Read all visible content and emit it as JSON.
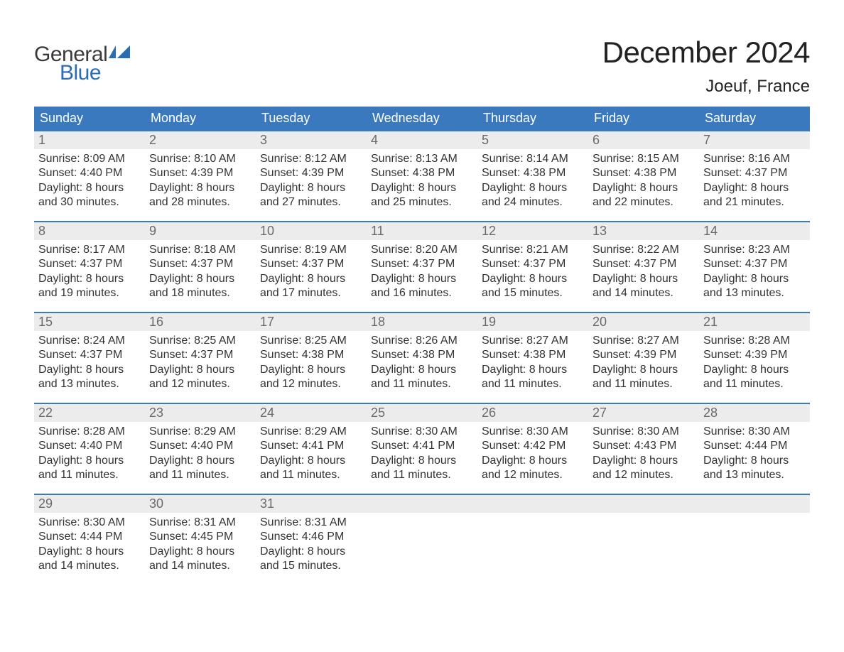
{
  "brand": {
    "part1": "General",
    "part2": "Blue"
  },
  "title": "December 2024",
  "location": "Joeuf, France",
  "colors": {
    "header_bg": "#3a79bd",
    "header_text": "#ffffff",
    "daynum_bg": "#ececec",
    "daynum_border": "#3a79bd",
    "daynum_text": "#6a6a6a",
    "body_text": "#333333",
    "brand_dark": "#3a3a3a",
    "brand_blue": "#2a6db5",
    "page_bg": "#ffffff"
  },
  "typography": {
    "title_fontsize": 42,
    "location_fontsize": 24,
    "header_fontsize": 18,
    "daynum_fontsize": 18,
    "body_fontsize": 16,
    "logo_fontsize": 30
  },
  "weekdays": [
    "Sunday",
    "Monday",
    "Tuesday",
    "Wednesday",
    "Thursday",
    "Friday",
    "Saturday"
  ],
  "days": [
    {
      "n": 1,
      "sunrise": "8:09 AM",
      "sunset": "4:40 PM",
      "daylight": "8 hours and 30 minutes."
    },
    {
      "n": 2,
      "sunrise": "8:10 AM",
      "sunset": "4:39 PM",
      "daylight": "8 hours and 28 minutes."
    },
    {
      "n": 3,
      "sunrise": "8:12 AM",
      "sunset": "4:39 PM",
      "daylight": "8 hours and 27 minutes."
    },
    {
      "n": 4,
      "sunrise": "8:13 AM",
      "sunset": "4:38 PM",
      "daylight": "8 hours and 25 minutes."
    },
    {
      "n": 5,
      "sunrise": "8:14 AM",
      "sunset": "4:38 PM",
      "daylight": "8 hours and 24 minutes."
    },
    {
      "n": 6,
      "sunrise": "8:15 AM",
      "sunset": "4:38 PM",
      "daylight": "8 hours and 22 minutes."
    },
    {
      "n": 7,
      "sunrise": "8:16 AM",
      "sunset": "4:37 PM",
      "daylight": "8 hours and 21 minutes."
    },
    {
      "n": 8,
      "sunrise": "8:17 AM",
      "sunset": "4:37 PM",
      "daylight": "8 hours and 19 minutes."
    },
    {
      "n": 9,
      "sunrise": "8:18 AM",
      "sunset": "4:37 PM",
      "daylight": "8 hours and 18 minutes."
    },
    {
      "n": 10,
      "sunrise": "8:19 AM",
      "sunset": "4:37 PM",
      "daylight": "8 hours and 17 minutes."
    },
    {
      "n": 11,
      "sunrise": "8:20 AM",
      "sunset": "4:37 PM",
      "daylight": "8 hours and 16 minutes."
    },
    {
      "n": 12,
      "sunrise": "8:21 AM",
      "sunset": "4:37 PM",
      "daylight": "8 hours and 15 minutes."
    },
    {
      "n": 13,
      "sunrise": "8:22 AM",
      "sunset": "4:37 PM",
      "daylight": "8 hours and 14 minutes."
    },
    {
      "n": 14,
      "sunrise": "8:23 AM",
      "sunset": "4:37 PM",
      "daylight": "8 hours and 13 minutes."
    },
    {
      "n": 15,
      "sunrise": "8:24 AM",
      "sunset": "4:37 PM",
      "daylight": "8 hours and 13 minutes."
    },
    {
      "n": 16,
      "sunrise": "8:25 AM",
      "sunset": "4:37 PM",
      "daylight": "8 hours and 12 minutes."
    },
    {
      "n": 17,
      "sunrise": "8:25 AM",
      "sunset": "4:38 PM",
      "daylight": "8 hours and 12 minutes."
    },
    {
      "n": 18,
      "sunrise": "8:26 AM",
      "sunset": "4:38 PM",
      "daylight": "8 hours and 11 minutes."
    },
    {
      "n": 19,
      "sunrise": "8:27 AM",
      "sunset": "4:38 PM",
      "daylight": "8 hours and 11 minutes."
    },
    {
      "n": 20,
      "sunrise": "8:27 AM",
      "sunset": "4:39 PM",
      "daylight": "8 hours and 11 minutes."
    },
    {
      "n": 21,
      "sunrise": "8:28 AM",
      "sunset": "4:39 PM",
      "daylight": "8 hours and 11 minutes."
    },
    {
      "n": 22,
      "sunrise": "8:28 AM",
      "sunset": "4:40 PM",
      "daylight": "8 hours and 11 minutes."
    },
    {
      "n": 23,
      "sunrise": "8:29 AM",
      "sunset": "4:40 PM",
      "daylight": "8 hours and 11 minutes."
    },
    {
      "n": 24,
      "sunrise": "8:29 AM",
      "sunset": "4:41 PM",
      "daylight": "8 hours and 11 minutes."
    },
    {
      "n": 25,
      "sunrise": "8:30 AM",
      "sunset": "4:41 PM",
      "daylight": "8 hours and 11 minutes."
    },
    {
      "n": 26,
      "sunrise": "8:30 AM",
      "sunset": "4:42 PM",
      "daylight": "8 hours and 12 minutes."
    },
    {
      "n": 27,
      "sunrise": "8:30 AM",
      "sunset": "4:43 PM",
      "daylight": "8 hours and 12 minutes."
    },
    {
      "n": 28,
      "sunrise": "8:30 AM",
      "sunset": "4:44 PM",
      "daylight": "8 hours and 13 minutes."
    },
    {
      "n": 29,
      "sunrise": "8:30 AM",
      "sunset": "4:44 PM",
      "daylight": "8 hours and 14 minutes."
    },
    {
      "n": 30,
      "sunrise": "8:31 AM",
      "sunset": "4:45 PM",
      "daylight": "8 hours and 14 minutes."
    },
    {
      "n": 31,
      "sunrise": "8:31 AM",
      "sunset": "4:46 PM",
      "daylight": "8 hours and 15 minutes."
    }
  ],
  "labels": {
    "sunrise": "Sunrise:",
    "sunset": "Sunset:",
    "daylight": "Daylight:"
  },
  "layout": {
    "first_weekday_offset": 0,
    "columns": 7,
    "rows": 5
  }
}
